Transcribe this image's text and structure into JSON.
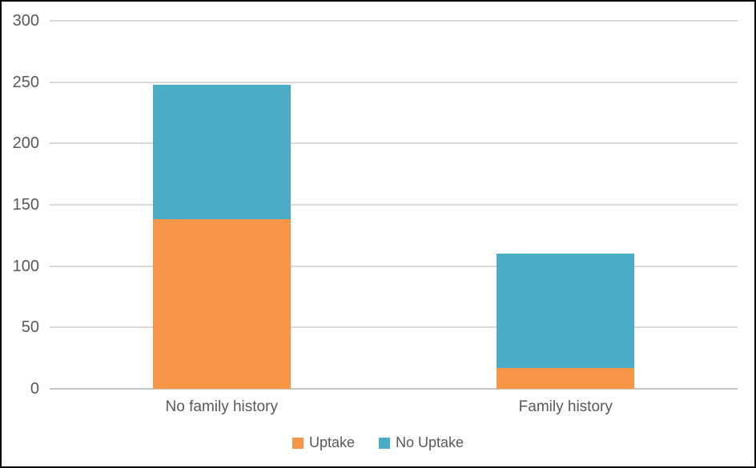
{
  "chart_data": {
    "type": "bar",
    "subtype": "stacked-column",
    "title": "",
    "xlabel": "",
    "ylabel": "",
    "categories": [
      "No family history",
      "Family history"
    ],
    "series": [
      {
        "name": "Uptake",
        "color": "#F79646",
        "values": [
          138,
          17
        ]
      },
      {
        "name": "No Uptake",
        "color": "#4BACC6",
        "values": [
          110,
          93
        ]
      }
    ],
    "totals": [
      248,
      110
    ],
    "ylim": [
      0,
      300
    ],
    "yticks": [
      0,
      50,
      100,
      150,
      200,
      250,
      300
    ],
    "grid": "horizontal",
    "gridline_color": "#D9D9D9",
    "axis_label_color": "#595959",
    "frame_border_color": "#000000",
    "legend_position": "bottom-center"
  }
}
